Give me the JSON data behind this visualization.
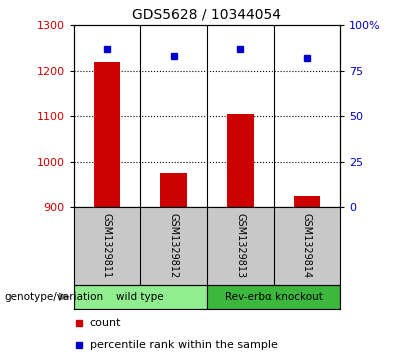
{
  "title": "GDS5628 / 10344054",
  "samples": [
    "GSM1329811",
    "GSM1329812",
    "GSM1329813",
    "GSM1329814"
  ],
  "groups": [
    {
      "label": "wild type",
      "indices": [
        0,
        1
      ],
      "color": "#90EE90"
    },
    {
      "label": "Rev-erbα knockout",
      "indices": [
        2,
        3
      ],
      "color": "#3CB83C"
    }
  ],
  "counts": [
    1220,
    975,
    1105,
    925
  ],
  "percentile_ranks": [
    87,
    83,
    87,
    82
  ],
  "ylim_left": [
    900,
    1300
  ],
  "ylim_right": [
    0,
    100
  ],
  "yticks_left": [
    900,
    1000,
    1100,
    1200,
    1300
  ],
  "yticks_right": [
    0,
    25,
    50,
    75,
    100
  ],
  "yticklabels_right": [
    "0",
    "25",
    "50",
    "75",
    "100%"
  ],
  "bar_color": "#CC0000",
  "dot_color": "#0000CC",
  "bg_color": "#ffffff",
  "plot_bg": "#ffffff",
  "sample_bg": "#C8C8C8",
  "label_count": "count",
  "label_percentile": "percentile rank within the sample",
  "group_label": "genotype/variation",
  "ylabel_left_color": "#CC0000",
  "ylabel_right_color": "#0000CC",
  "grid_dotted_at": [
    1000,
    1100,
    1200
  ],
  "bar_width": 0.4
}
